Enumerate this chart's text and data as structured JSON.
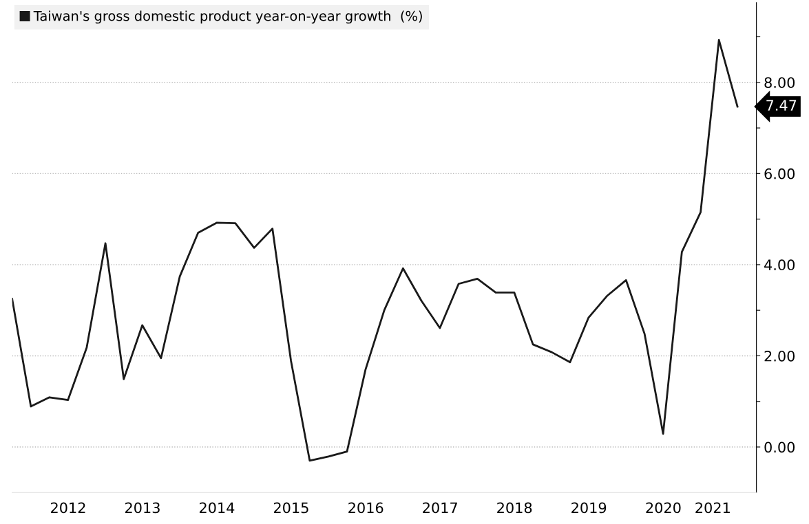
{
  "chart_data": {
    "type": "line",
    "x": [
      "2011-09-30",
      "2011-12-31",
      "2012-03-31",
      "2012-06-30",
      "2012-09-30",
      "2012-12-31",
      "2013-03-31",
      "2013-06-30",
      "2013-09-30",
      "2013-12-31",
      "2014-03-31",
      "2014-06-30",
      "2014-09-30",
      "2014-12-31",
      "2015-03-31",
      "2015-06-30",
      "2015-09-30",
      "2015-12-31",
      "2016-03-31",
      "2016-06-30",
      "2016-09-30",
      "2016-12-31",
      "2017-03-31",
      "2017-06-30",
      "2017-09-30",
      "2017-12-31",
      "2018-03-31",
      "2018-06-30",
      "2018-09-30",
      "2018-12-31",
      "2019-03-31",
      "2019-06-30",
      "2019-09-30",
      "2019-12-31",
      "2020-03-31",
      "2020-06-30",
      "2020-09-30",
      "2020-12-31",
      "2021-03-31",
      "2021-06-30"
    ],
    "series": [
      {
        "name": "Taiwan's gross domestic product year-on-year growth  (%)",
        "color": "#1a1a1a",
        "values": [
          3.25,
          0.89,
          1.09,
          1.03,
          2.18,
          4.47,
          1.49,
          2.67,
          1.95,
          3.74,
          4.7,
          4.92,
          4.91,
          4.37,
          4.79,
          1.89,
          -0.3,
          -0.21,
          -0.1,
          1.7,
          3.0,
          3.92,
          3.21,
          2.61,
          3.58,
          3.69,
          3.39,
          3.39,
          2.25,
          2.08,
          1.86,
          2.84,
          3.32,
          3.66,
          2.48,
          0.29,
          4.28,
          5.15,
          8.93,
          7.47
        ]
      }
    ],
    "xlim": [
      "2011-09-30",
      "2021-10-01"
    ],
    "xticks": [
      {
        "value": "2012-07-01",
        "label": "2012"
      },
      {
        "value": "2013-07-01",
        "label": "2013"
      },
      {
        "value": "2014-07-01",
        "label": "2014"
      },
      {
        "value": "2015-07-01",
        "label": "2015"
      },
      {
        "value": "2016-07-01",
        "label": "2016"
      },
      {
        "value": "2017-07-01",
        "label": "2017"
      },
      {
        "value": "2018-07-01",
        "label": "2018"
      },
      {
        "value": "2019-07-01",
        "label": "2019"
      },
      {
        "value": "2020-07-01",
        "label": "2020"
      },
      {
        "value": "2021-03-01",
        "label": "2021"
      }
    ],
    "ylim": [
      -1,
      9.75
    ],
    "yticks": [
      {
        "value": 0,
        "label": "0.00"
      },
      {
        "value": 1,
        "label": null
      },
      {
        "value": 2,
        "label": "2.00"
      },
      {
        "value": 3,
        "label": null
      },
      {
        "value": 4,
        "label": "4.00"
      },
      {
        "value": 5,
        "label": null
      },
      {
        "value": 6,
        "label": "6.00"
      },
      {
        "value": 7,
        "label": null
      },
      {
        "value": 8,
        "label": "8.00"
      },
      {
        "value": 9,
        "label": null
      }
    ],
    "annotations": [
      {
        "text": "7.47",
        "x": "2021-06-30",
        "y": 7.47
      }
    ],
    "grid": "y",
    "legend": "top left",
    "marker": "none",
    "line_style": "solid"
  }
}
